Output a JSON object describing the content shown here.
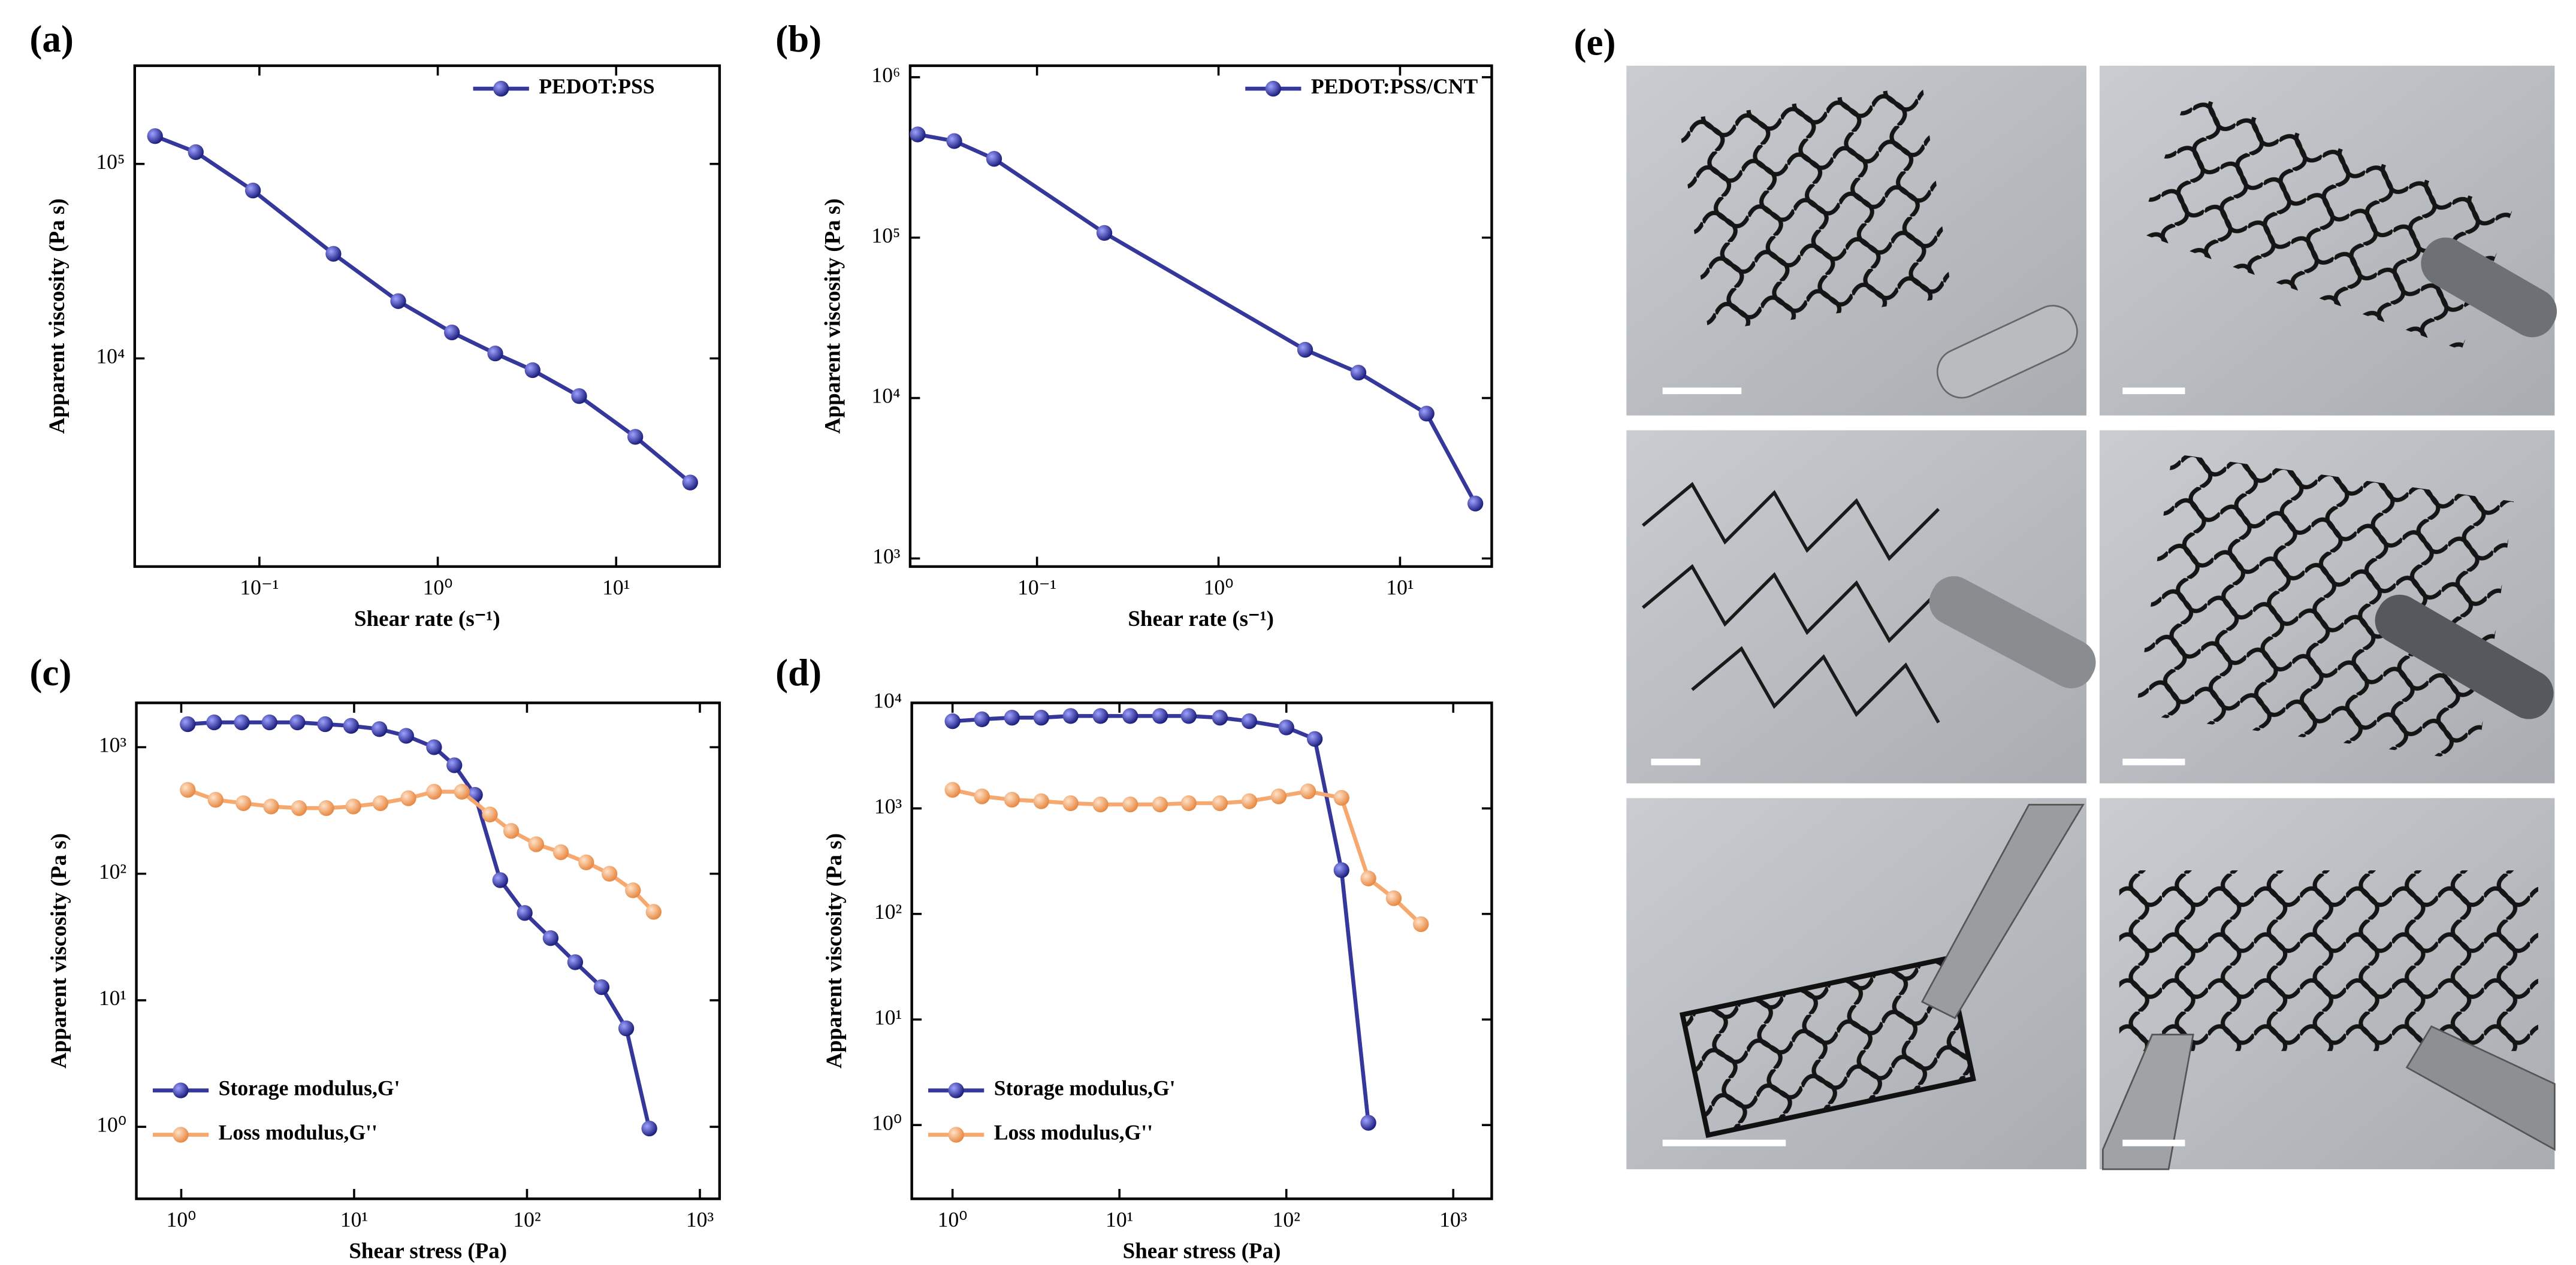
{
  "chart_data": [
    {
      "type": "line",
      "label": "(a)",
      "xlabel": "Shear rate (s⁻¹)",
      "ylabel": "Apparent viscosity (Pa s)",
      "xlog": true,
      "ylog": true,
      "xlim": [
        0.02,
        38
      ],
      "ylim": [
        850,
        320000
      ],
      "legend": "upper right",
      "xticks": [
        {
          "value": 0.1,
          "label": "10⁻¹"
        },
        {
          "value": 1,
          "label": "10⁰"
        },
        {
          "value": 10,
          "label": "10¹"
        }
      ],
      "yticks": [
        {
          "value": 10000,
          "label": "10⁴"
        },
        {
          "value": 100000,
          "label": "10⁵"
        }
      ],
      "series": [
        {
          "name": "PEDOT:PSS",
          "color": "#35389a",
          "x": [
            0.026,
            0.044,
            0.092,
            0.26,
            0.6,
            1.2,
            2.1,
            3.4,
            6.2,
            12.8,
            26
          ],
          "values": [
            139000,
            115000,
            73000,
            34500,
            19700,
            13600,
            10600,
            8700,
            6400,
            3950,
            2300
          ]
        }
      ]
    },
    {
      "type": "line",
      "label": "(b)",
      "xlabel": "Shear rate (s⁻¹)",
      "ylabel": "Apparent viscosity (Pa s)",
      "xlog": true,
      "ylog": true,
      "xlim": [
        0.02,
        32
      ],
      "ylim": [
        890,
        1180000
      ],
      "legend": "upper right",
      "xticks": [
        {
          "value": 0.1,
          "label": "10⁻¹"
        },
        {
          "value": 1,
          "label": "10⁰"
        },
        {
          "value": 10,
          "label": "10¹"
        }
      ],
      "yticks": [
        {
          "value": 1000,
          "label": "10³"
        },
        {
          "value": 10000,
          "label": "10⁴"
        },
        {
          "value": 100000,
          "label": "10⁵"
        },
        {
          "value": 1000000,
          "label": "10⁶"
        }
      ],
      "series": [
        {
          "name": "PEDOT:PSS/CNT",
          "color": "#35389a",
          "x": [
            0.022,
            0.035,
            0.058,
            0.235,
            3.0,
            5.9,
            14,
            26
          ],
          "values": [
            440000,
            400000,
            310000,
            107000,
            20000,
            14400,
            8000,
            2200
          ]
        }
      ]
    },
    {
      "type": "line",
      "label": "(c)",
      "xlabel": "Shear stress (Pa)",
      "ylabel": "Apparent viscosity (Pa s)",
      "xlog": true,
      "ylog": true,
      "xlim": [
        0.55,
        1300
      ],
      "ylim": [
        0.27,
        2240
      ],
      "legend": "lower left",
      "xticks": [
        {
          "value": 1,
          "label": "10⁰"
        },
        {
          "value": 10,
          "label": "10¹"
        },
        {
          "value": 100,
          "label": "10²"
        },
        {
          "value": 1000,
          "label": "10³"
        }
      ],
      "yticks": [
        {
          "value": 1,
          "label": "10⁰"
        },
        {
          "value": 10,
          "label": "10¹"
        },
        {
          "value": 100,
          "label": "10²"
        },
        {
          "value": 1000,
          "label": "10³"
        }
      ],
      "series": [
        {
          "name": "Storage modulus,G'",
          "color": "#35389a",
          "x": [
            1.09,
            1.55,
            2.24,
            3.24,
            4.7,
            6.8,
            9.6,
            14,
            20,
            29,
            38,
            50,
            70,
            97,
            137,
            190,
            270,
            375,
            510
          ],
          "values": [
            1520,
            1570,
            1570,
            1570,
            1570,
            1520,
            1475,
            1390,
            1230,
            1000,
            720,
            420,
            89,
            49,
            31,
            20,
            12.7,
            6.0,
            0.97
          ]
        },
        {
          "name": "Loss modulus,G''",
          "color": "#f6a86e",
          "x": [
            1.09,
            1.58,
            2.29,
            3.31,
            4.8,
            6.9,
            9.9,
            14.2,
            20.6,
            29,
            42,
            61,
            81,
            113,
            157,
            220,
            300,
            410,
            540
          ],
          "values": [
            460,
            384,
            361,
            340,
            330,
            330,
            340,
            361,
            395,
            445,
            445,
            294,
            218,
            171,
            148,
            123,
            100,
            74,
            50
          ]
        }
      ]
    },
    {
      "type": "line",
      "label": "(d)",
      "xlabel": "Shear stress (Pa)",
      "ylabel": "Apparent viscosity (Pa s)",
      "xlog": true,
      "ylog": true,
      "xlim": [
        0.57,
        1700
      ],
      "ylim": [
        0.2,
        10000
      ],
      "legend": "lower left",
      "xticks": [
        {
          "value": 1,
          "label": "10⁰"
        },
        {
          "value": 10,
          "label": "10¹"
        },
        {
          "value": 100,
          "label": "10²"
        },
        {
          "value": 1000,
          "label": "10³"
        }
      ],
      "yticks": [
        {
          "value": 1,
          "label": "10⁰"
        },
        {
          "value": 10,
          "label": "10¹"
        },
        {
          "value": 100,
          "label": "10²"
        },
        {
          "value": 1000,
          "label": "10³"
        },
        {
          "value": 10000,
          "label": "10⁴"
        }
      ],
      "series": [
        {
          "name": "Storage modulus,G'",
          "color": "#35389a",
          "x": [
            1.0,
            1.5,
            2.27,
            3.4,
            5.1,
            7.7,
            11.6,
            17.5,
            26,
            40,
            60,
            100,
            148,
            214,
            310
          ],
          "values": [
            6700,
            6990,
            7240,
            7240,
            7510,
            7510,
            7510,
            7510,
            7510,
            7240,
            6700,
            5850,
            4550,
            260,
            1.05
          ]
        },
        {
          "name": "Loss modulus,G''",
          "color": "#f6a86e",
          "x": [
            1.0,
            1.5,
            2.27,
            3.4,
            5.1,
            7.7,
            11.6,
            17.5,
            26,
            40,
            60,
            90,
            135,
            214,
            310,
            440,
            640
          ],
          "values": [
            1500,
            1300,
            1210,
            1170,
            1120,
            1090,
            1090,
            1090,
            1120,
            1120,
            1170,
            1300,
            1450,
            1260,
            217,
            141,
            80
          ]
        }
      ]
    }
  ],
  "photos": {
    "label": "(e)"
  }
}
